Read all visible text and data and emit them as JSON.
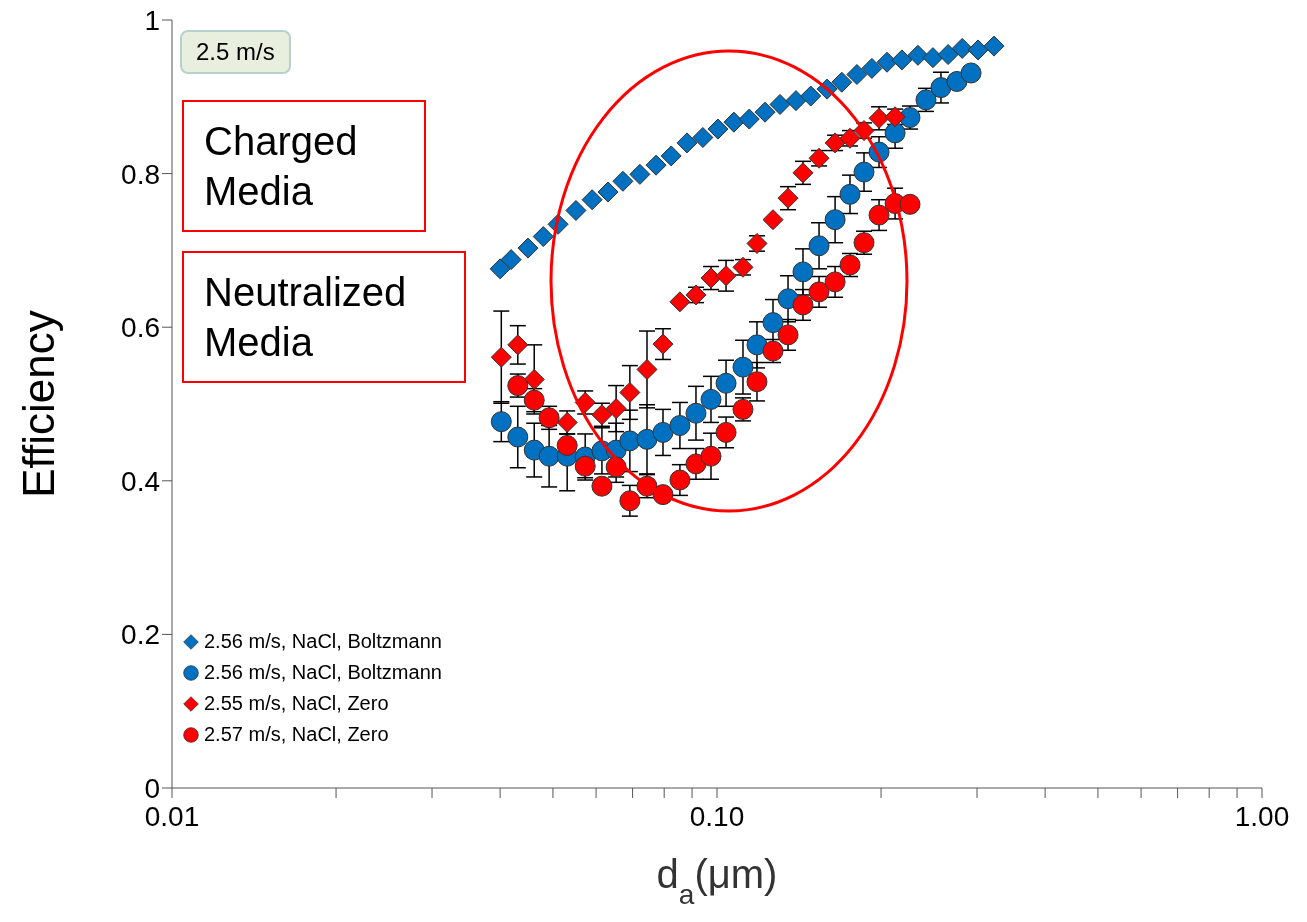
{
  "chart_data": {
    "type": "scatter",
    "xlabel": "d$_{a}$(μm)",
    "ylabel": "Efficiency",
    "log": "x",
    "grid": false,
    "legend": "bottom left",
    "xlim": [
      0.01,
      1
    ],
    "xticks": [
      {
        "value": 0.01,
        "label": "0.01"
      },
      {
        "value": 0.02,
        "label": null
      },
      {
        "value": 0.03,
        "label": null
      },
      {
        "value": 0.04,
        "label": null
      },
      {
        "value": 0.05,
        "label": null
      },
      {
        "value": 0.06,
        "label": null
      },
      {
        "value": 0.07,
        "label": null
      },
      {
        "value": 0.08,
        "label": null
      },
      {
        "value": 0.09,
        "label": null
      },
      {
        "value": 0.1,
        "label": "0.10"
      },
      {
        "value": 0.2,
        "label": null
      },
      {
        "value": 0.3,
        "label": null
      },
      {
        "value": 0.4,
        "label": null
      },
      {
        "value": 0.5,
        "label": null
      },
      {
        "value": 0.6,
        "label": null
      },
      {
        "value": 0.7,
        "label": null
      },
      {
        "value": 0.8,
        "label": null
      },
      {
        "value": 0.9,
        "label": null
      },
      {
        "value": 1,
        "label": "1.00"
      }
    ],
    "ylim": [
      0,
      1
    ],
    "yticks": [
      0,
      0.2,
      0.4,
      0.6,
      0.8,
      1
    ],
    "annotations": [
      "2.5 m/s",
      "Charged Media",
      "Neutralized Media"
    ],
    "series": [
      {
        "name": "2.56 m/s, NaCl, Boltzmann",
        "color": "#0070c0",
        "marker": "diamond",
        "x": [
          0.04,
          0.0419,
          0.045,
          0.048,
          0.0511,
          0.0551,
          0.059,
          0.0631,
          0.0672,
          0.0722,
          0.0773,
          0.0824,
          0.0881,
          0.0942,
          0.1004,
          0.1074,
          0.1146,
          0.1225,
          0.1305,
          0.1396,
          0.1486,
          0.1592,
          0.1694,
          0.1806,
          0.1924,
          0.2051,
          0.2184,
          0.2337,
          0.249,
          0.2655,
          0.2818,
          0.3013,
          0.3223
        ],
        "values": [
          0.676,
          0.688,
          0.703,
          0.718,
          0.734,
          0.752,
          0.766,
          0.776,
          0.79,
          0.799,
          0.811,
          0.823,
          0.84,
          0.847,
          0.858,
          0.867,
          0.871,
          0.88,
          0.89,
          0.895,
          0.901,
          0.91,
          0.919,
          0.929,
          0.937,
          0.945,
          0.948,
          0.954,
          0.951,
          0.955,
          0.963,
          0.961,
          0.966
        ]
      },
      {
        "name": "2.56 m/s, NaCl, Boltzmann",
        "color": "#0070c0",
        "marker": "circle",
        "x": [
          0.0402,
          0.0431,
          0.0462,
          0.0492,
          0.0531,
          0.0573,
          0.0615,
          0.0653,
          0.0692,
          0.0744,
          0.0796,
          0.0855,
          0.0915,
          0.0975,
          0.1039,
          0.1116,
          0.1184,
          0.1267,
          0.135,
          0.1438,
          0.1539,
          0.1647,
          0.1754,
          0.1861,
          0.1983,
          0.2122,
          0.226,
          0.2418,
          0.2576,
          0.2756,
          0.2925
        ],
        "values": [
          0.477,
          0.457,
          0.44,
          0.432,
          0.432,
          0.431,
          0.439,
          0.44,
          0.452,
          0.454,
          0.463,
          0.472,
          0.488,
          0.506,
          0.527,
          0.548,
          0.577,
          0.606,
          0.637,
          0.672,
          0.706,
          0.74,
          0.773,
          0.802,
          0.828,
          0.853,
          0.873,
          0.896,
          0.912,
          0.92,
          0.931
        ],
        "errors": [
          0.026,
          0.04,
          0.035,
          0.04,
          0.045,
          0.03,
          0.03,
          0.035,
          0.04,
          0.045,
          0.03,
          0.03,
          0.035,
          0.03,
          0.03,
          0.035,
          0.03,
          0.03,
          0.03,
          0.03,
          0.03,
          0.03,
          0.025,
          0.025,
          0.02,
          0.02,
          0.015,
          0.015,
          0.02,
          null,
          null
        ]
      },
      {
        "name": "2.55 m/s, NaCl, Zero",
        "color": "#ff0000",
        "marker": "diamond",
        "x": [
          0.0402,
          0.0431,
          0.0462,
          0.0492,
          0.0531,
          0.0573,
          0.0615,
          0.0653,
          0.0692,
          0.0744,
          0.0796,
          0.0855,
          0.0915,
          0.0975,
          0.1039,
          0.1116,
          0.1184,
          0.1267,
          0.135,
          0.1438,
          0.1539,
          0.1647,
          0.1754,
          0.1861,
          0.1983,
          0.2122
        ],
        "values": [
          0.561,
          0.577,
          0.532,
          null,
          0.476,
          0.502,
          0.486,
          0.494,
          0.515,
          0.545,
          0.578,
          0.633,
          0.642,
          0.664,
          0.667,
          0.678,
          0.709,
          0.74,
          0.768,
          0.801,
          0.82,
          0.84,
          0.846,
          0.856,
          0.872,
          0.874
        ],
        "errors": [
          0.06,
          0.025,
          0.045,
          null,
          0.015,
          0.015,
          0.015,
          0.03,
          0.035,
          0.05,
          0.02,
          null,
          0.01,
          0.015,
          0.02,
          0.01,
          0.01,
          null,
          0.015,
          0.015,
          0.01,
          0.01,
          0.01,
          0.01,
          0.015,
          0.01
        ]
      },
      {
        "name": "2.57 m/s, NaCl, Zero",
        "color": "#ff0000",
        "marker": "circle",
        "x": [
          0.0431,
          0.0462,
          0.0492,
          0.0531,
          0.0573,
          0.0615,
          0.0653,
          0.0692,
          0.0744,
          0.0796,
          0.0855,
          0.0915,
          0.0975,
          0.1039,
          0.1116,
          0.1184,
          0.1267,
          0.135,
          0.1438,
          0.1539,
          0.1647,
          0.1754,
          0.1861,
          0.1983,
          0.2122,
          0.226
        ],
        "values": [
          0.524,
          0.505,
          0.482,
          0.446,
          0.419,
          0.393,
          0.418,
          0.374,
          0.393,
          0.382,
          0.401,
          0.422,
          0.432,
          0.463,
          0.493,
          0.529,
          0.569,
          0.59,
          0.629,
          0.646,
          0.659,
          0.681,
          0.71,
          0.746,
          0.761,
          0.76
        ],
        "errors": [
          0.015,
          0.015,
          0.015,
          0.015,
          0.015,
          null,
          0.02,
          0.02,
          0.015,
          null,
          0.02,
          0.02,
          0.03,
          0.02,
          0.015,
          0.025,
          0.015,
          0.02,
          0.02,
          0.02,
          0.02,
          0.015,
          0.015,
          0.02,
          0.02,
          null
        ]
      }
    ]
  }
}
